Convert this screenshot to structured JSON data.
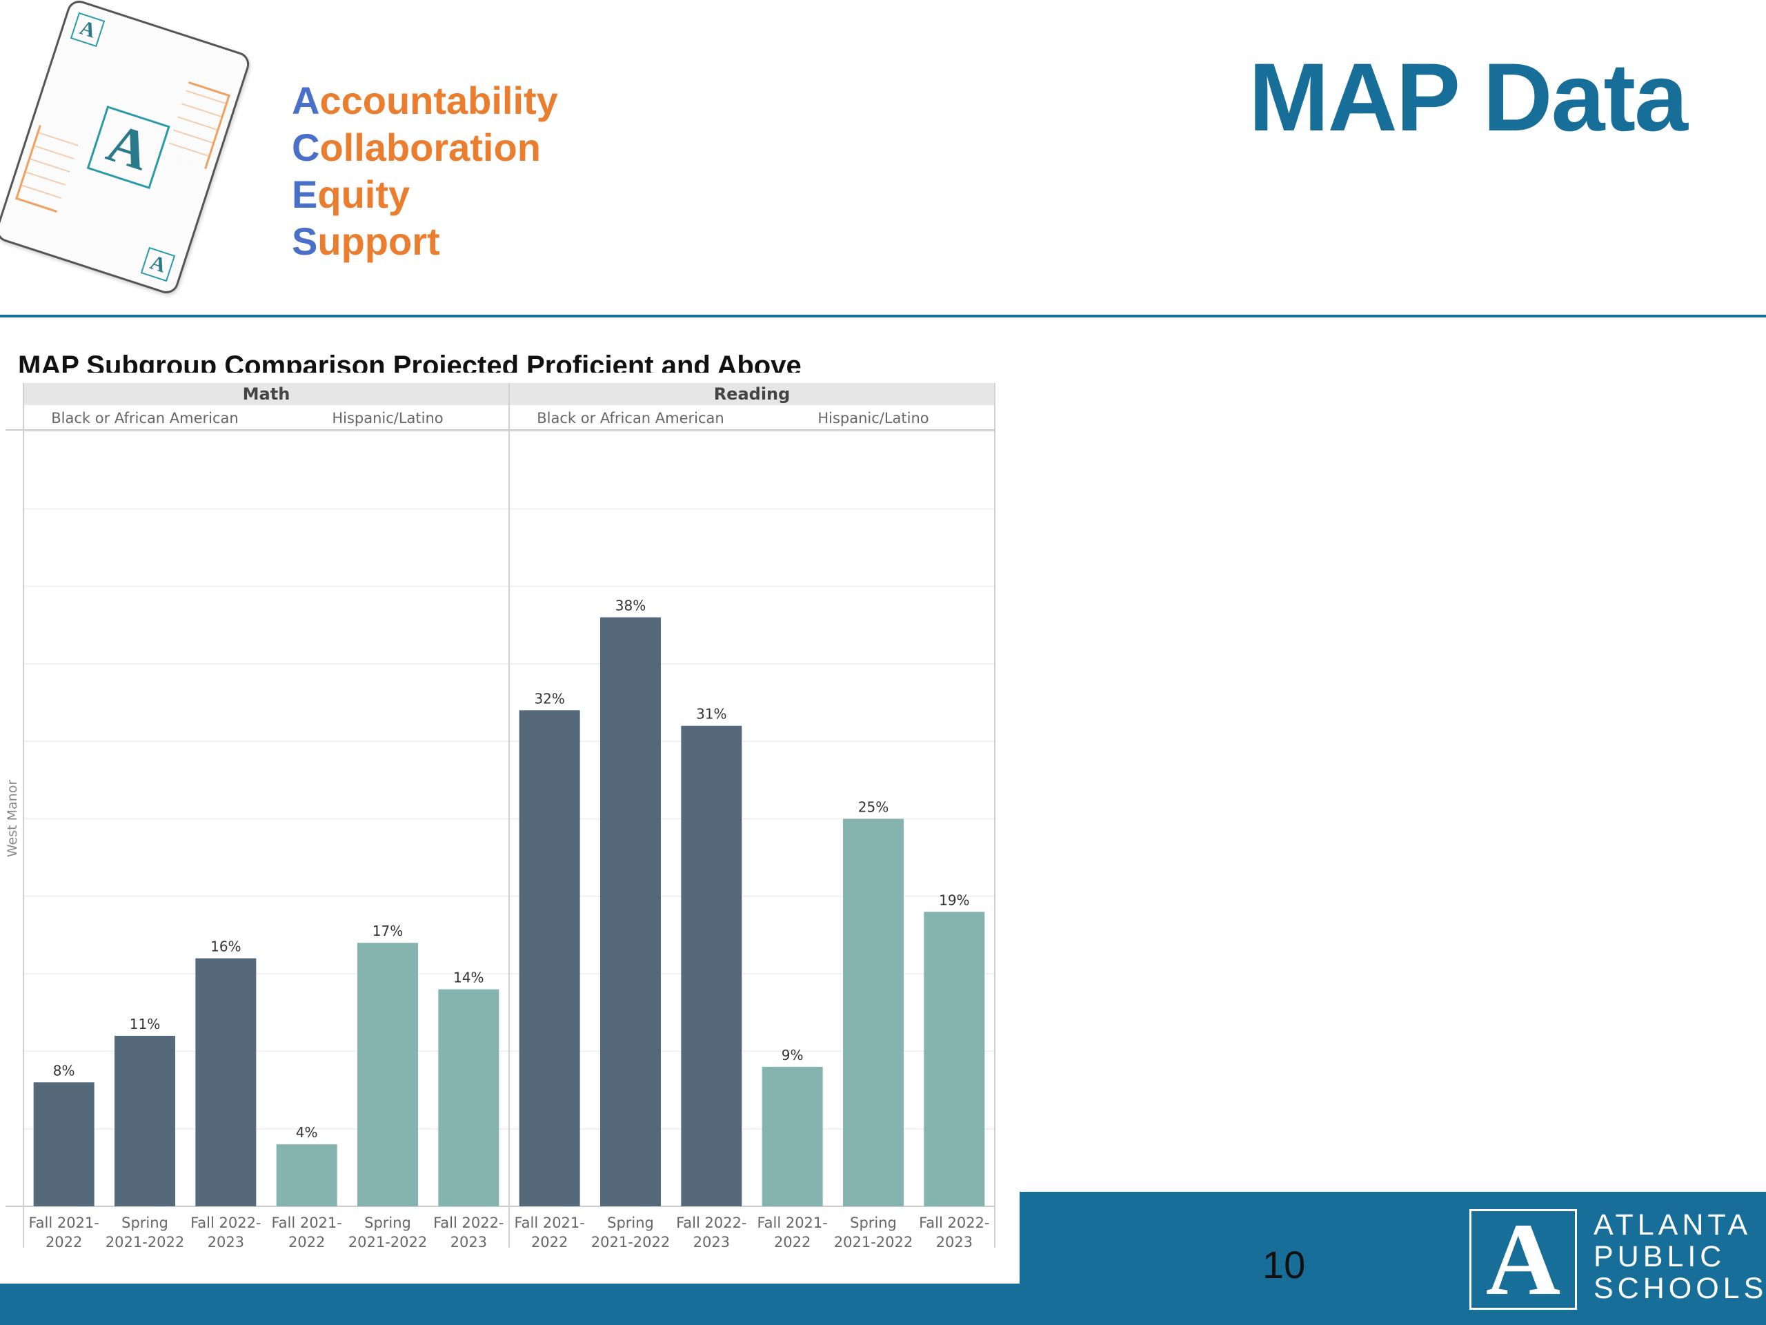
{
  "values": [
    "Accountability",
    "Collaboration",
    "Equity",
    "Support"
  ],
  "slide_title": "MAP Data",
  "page_number": "10",
  "logo": {
    "letter": "A",
    "lines": [
      "ATLANTA",
      "PUBLIC",
      "SCHOOLS"
    ]
  },
  "card_letter": "A",
  "colors": {
    "title": "#176e98",
    "value_first_letter": "#4a6fc8",
    "value_rest": "#ea7d2e",
    "black_series": "#56697b",
    "hispanic_series": "#85b4b0"
  },
  "chart_data": {
    "type": "bar",
    "title": "MAP Subgroup Comparison Projected Proficient and Above",
    "row_label": "West Manor",
    "ylim": [
      0,
      100
    ],
    "panels": [
      {
        "subject": "Math",
        "groups": [
          {
            "name": "Black or African American",
            "categories": [
              "Fall 2021-2022",
              "Spring 2021-2022",
              "Fall 2022-2023"
            ],
            "values": [
              8,
              11,
              16
            ],
            "labels": [
              "8%",
              "11%",
              "16%"
            ]
          },
          {
            "name": "Hispanic/Latino",
            "categories": [
              "Fall 2021-2022",
              "Spring 2021-2022",
              "Fall 2022-2023"
            ],
            "values": [
              4,
              17,
              14
            ],
            "labels": [
              "4%",
              "17%",
              "14%"
            ]
          }
        ]
      },
      {
        "subject": "Reading",
        "groups": [
          {
            "name": "Black or African American",
            "categories": [
              "Fall 2021-2022",
              "Spring 2021-2022",
              "Fall 2022-2023"
            ],
            "values": [
              32,
              38,
              31
            ],
            "labels": [
              "32%",
              "38%",
              "31%"
            ]
          },
          {
            "name": "Hispanic/Latino",
            "categories": [
              "Fall 2021-2022",
              "Spring 2021-2022",
              "Fall 2022-2023"
            ],
            "values": [
              9,
              25,
              19
            ],
            "labels": [
              "9%",
              "25%",
              "19%"
            ]
          }
        ]
      }
    ],
    "grid": true
  }
}
